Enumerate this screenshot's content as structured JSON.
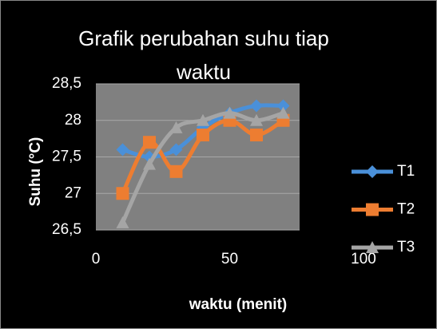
{
  "chart_data": {
    "type": "scatter",
    "title": "Grafik perubahan suhu tiap waktu",
    "x_label": "waktu (menit)",
    "y_label": "Suhu (°C)",
    "xlim": [
      0,
      100
    ],
    "xticks": [
      0,
      50,
      100
    ],
    "ylim": [
      26.5,
      28.5
    ],
    "yticks": [
      {
        "value": 26.5,
        "label": "26,5"
      },
      {
        "value": 27,
        "label": "27"
      },
      {
        "value": 27.5,
        "label": "27,5"
      },
      {
        "value": 28,
        "label": "28"
      },
      {
        "value": 28.5,
        "label": "28,5"
      }
    ],
    "grid": true,
    "legend": "right",
    "x": [
      10,
      20,
      30,
      40,
      50,
      60,
      70
    ],
    "series": [
      {
        "name": "T1",
        "color": "#4a90d9",
        "marker": "diamond",
        "values": [
          27.6,
          27.5,
          27.6,
          27.9,
          28.1,
          28.2,
          28.2
        ]
      },
      {
        "name": "T2",
        "color": "#ed7d31",
        "marker": "square",
        "values": [
          27,
          27.7,
          27.3,
          27.8,
          28,
          27.8,
          28
        ]
      },
      {
        "name": "T3",
        "color": "#a5a5a5",
        "marker": "triangle",
        "values": [
          26.6,
          27.4,
          27.9,
          28,
          28.1,
          28,
          28.1
        ]
      }
    ]
  }
}
